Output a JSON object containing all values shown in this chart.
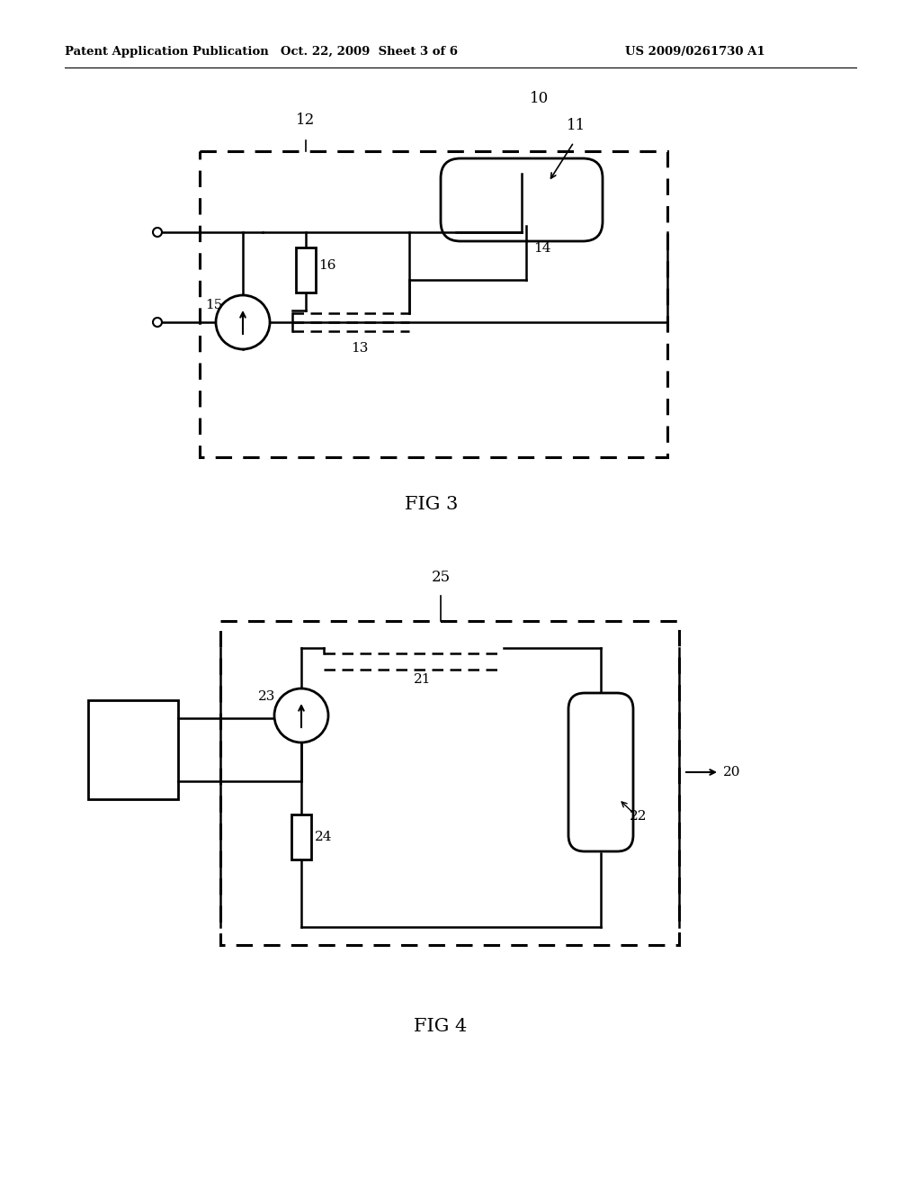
{
  "bg_color": "#ffffff",
  "header_left": "Patent Application Publication",
  "header_mid": "Oct. 22, 2009  Sheet 3 of 6",
  "header_right": "US 2009/0261730 A1",
  "fig3_label": "FIG 3",
  "fig4_label": "FIG 4",
  "lc": "#000000",
  "lw": 1.8,
  "lw_thin": 1.2
}
